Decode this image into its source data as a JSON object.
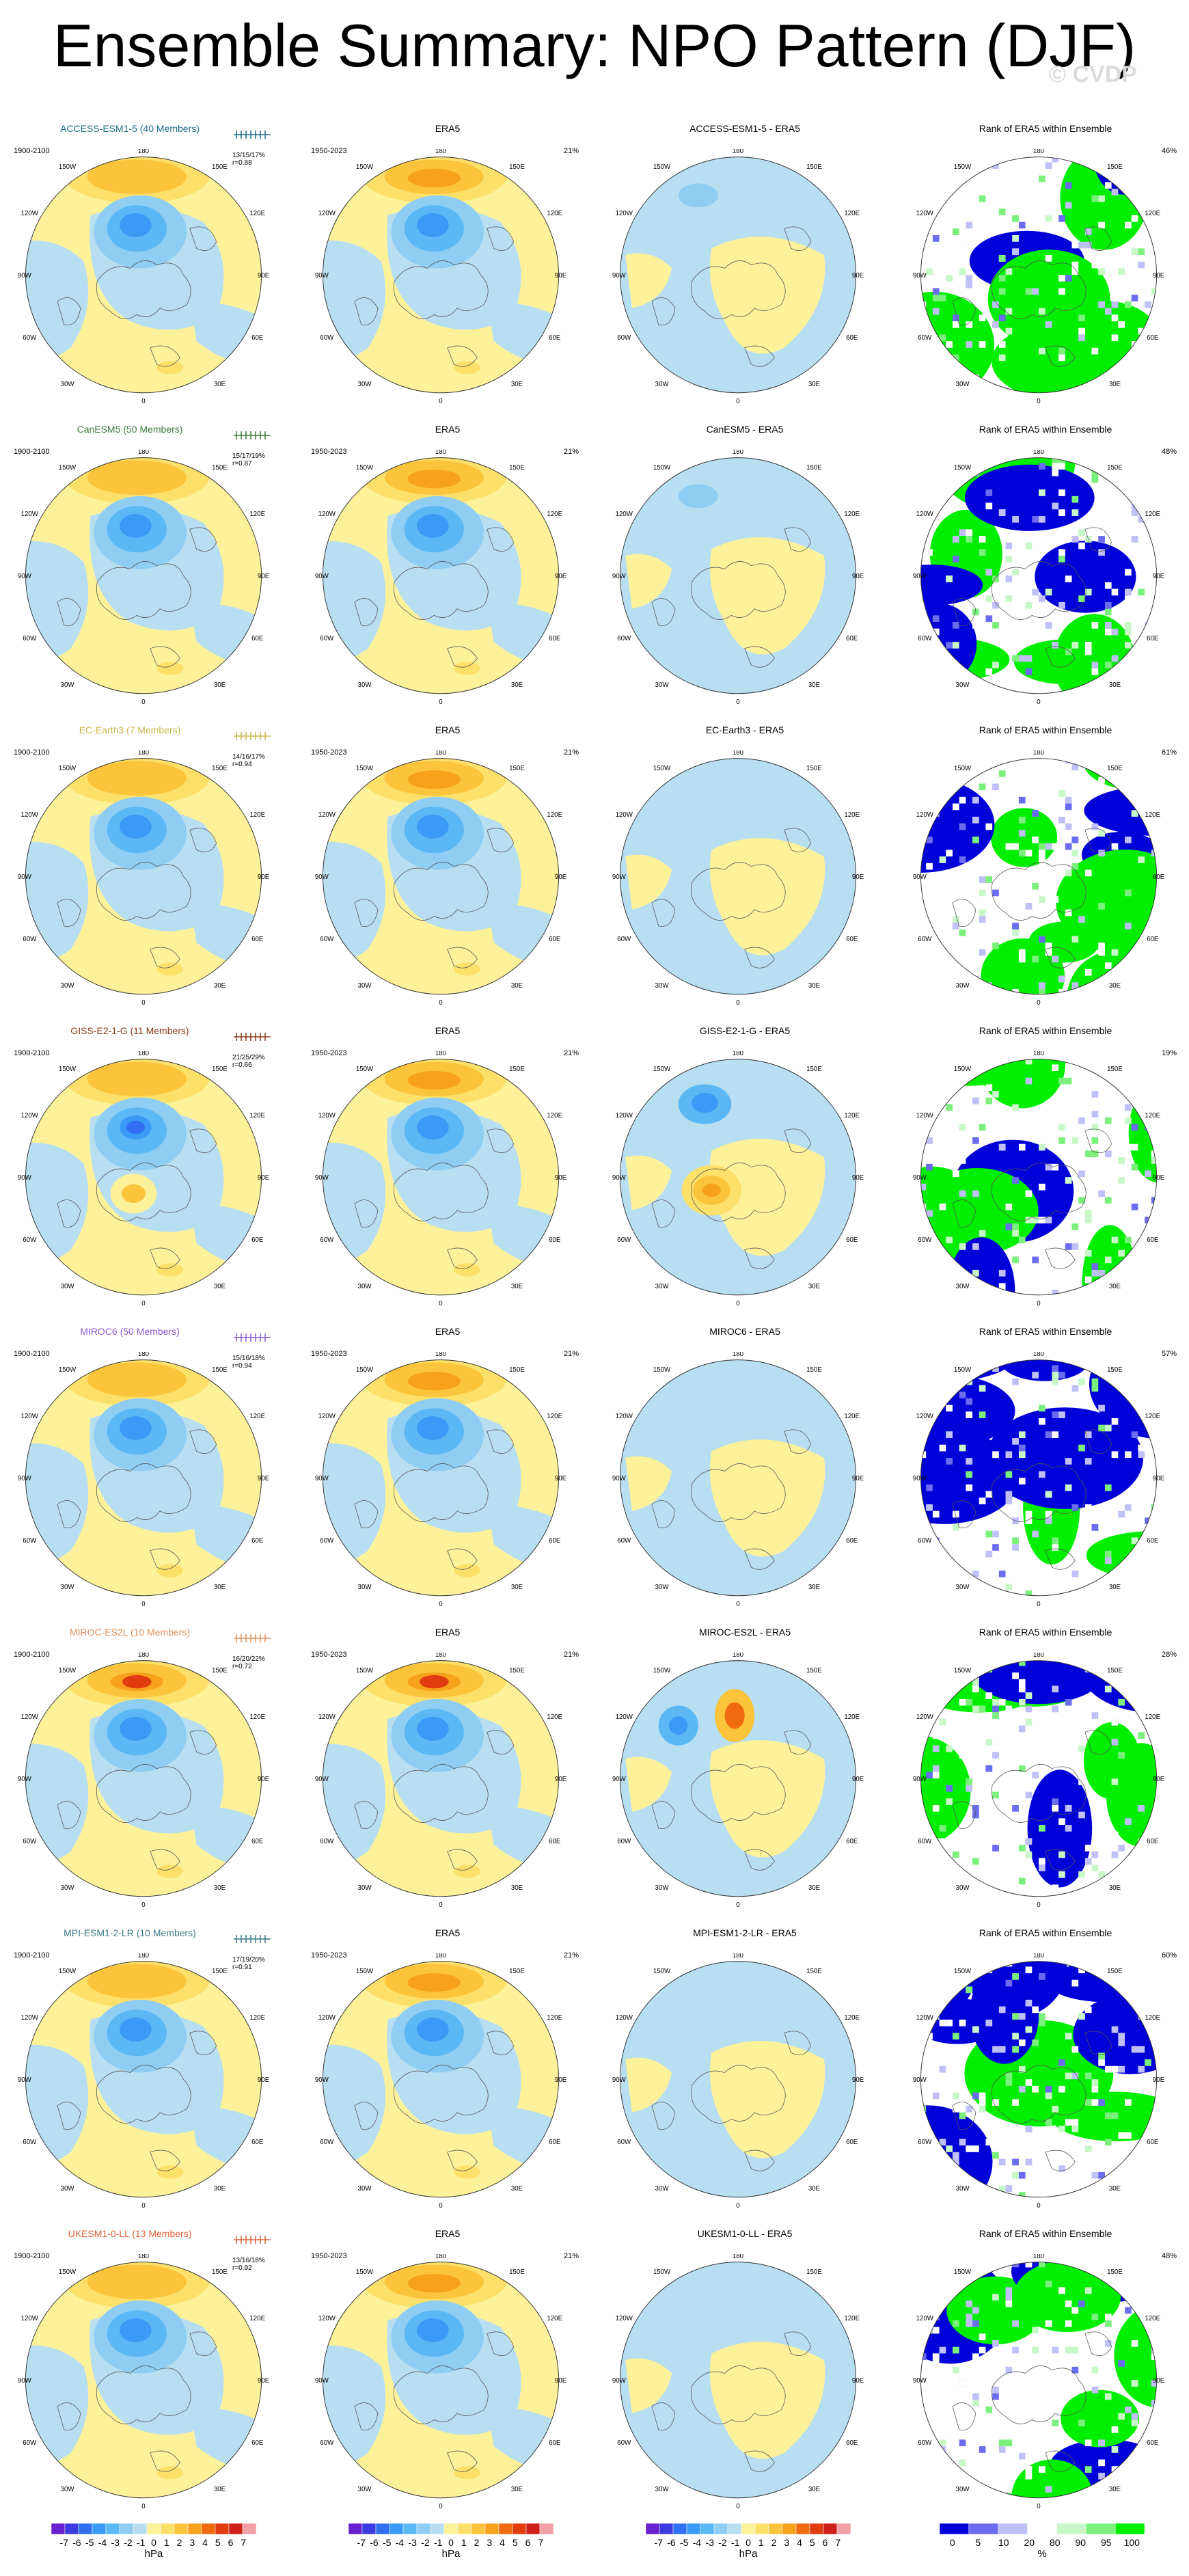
{
  "figure": {
    "title": "Ensemble Summary: NPO Pattern (DJF)",
    "watermark": "© CVDP"
  },
  "colors": {
    "neg7": "#6a1fd0",
    "neg6": "#3b3be0",
    "neg5": "#2f6ff0",
    "neg4": "#3a9af5",
    "neg3": "#5bb8f5",
    "neg2": "#8fcdf2",
    "neg1": "#b8def2",
    "pos1": "#fdf29a",
    "pos2": "#fde06a",
    "pos3": "#fbc43a",
    "pos4": "#f7a21c",
    "pos5": "#f06a10",
    "pos6": "#e03c10",
    "pos7": "#d0201a",
    "pos8": "#f2a0a8",
    "rank_blue": "#0000d8",
    "rank_lightblue": "#6c6cf0",
    "rank_paleblue": "#c0c0f8",
    "rank_white": "#ffffff",
    "rank_palegreen": "#c8f8c8",
    "rank_lightgreen": "#7cf07c",
    "rank_green": "#00ee00"
  },
  "map_labels": {
    "top": "180",
    "bottom": "0",
    "ul": "150W",
    "ur": "150E",
    "l1": "120W",
    "r1": "120E",
    "l2": "90W",
    "r2": "90E",
    "l3": "60W",
    "r3": "60E",
    "ll": "30W",
    "lr": "30E"
  },
  "rows": [
    {
      "model_title": "ACCESS-ESM1-5 (40 Members)",
      "model_color": "#1a6e8a",
      "model_years": "1900-2100",
      "stats1": "13/15/17%",
      "stats2": "r=0.88",
      "era5_title": "ERA5",
      "era5_years": "1950-2023",
      "era5_pct": "21%",
      "diff_title": "ACCESS-ESM1-5 - ERA5",
      "rank_title": "Rank of ERA5 within Ensemble",
      "rank_pct": "46%"
    },
    {
      "model_title": "CanESM5 (50 Members)",
      "model_color": "#3a7a3a",
      "model_years": "1900-2100",
      "stats1": "15/17/19%",
      "stats2": "r=0.87",
      "era5_title": "ERA5",
      "era5_years": "1950-2023",
      "era5_pct": "21%",
      "diff_title": "CanESM5 - ERA5",
      "rank_title": "Rank of ERA5 within Ensemble",
      "rank_pct": "48%"
    },
    {
      "model_title": "EC-Earth3 (7 Members)",
      "model_color": "#c8b84a",
      "model_years": "1900-2100",
      "stats1": "14/16/17%",
      "stats2": "r=0.94",
      "era5_title": "ERA5",
      "era5_years": "1950-2023",
      "era5_pct": "21%",
      "diff_title": "EC-Earth3 - ERA5",
      "rank_title": "Rank of ERA5 within Ensemble",
      "rank_pct": "61%"
    },
    {
      "model_title": "GISS-E2-1-G (11 Members)",
      "model_color": "#8a3a1a",
      "model_years": "1900-2100",
      "stats1": "21/25/29%",
      "stats2": "r=0.66",
      "era5_title": "ERA5",
      "era5_years": "1950-2023",
      "era5_pct": "21%",
      "diff_title": "GISS-E2-1-G - ERA5",
      "rank_title": "Rank of ERA5 within Ensemble",
      "rank_pct": "19%"
    },
    {
      "model_title": "MIROC6 (50 Members)",
      "model_color": "#8a5ad0",
      "model_years": "1900-2100",
      "stats1": "15/16/18%",
      "stats2": "r=0.94",
      "era5_title": "ERA5",
      "era5_years": "1950-2023",
      "era5_pct": "21%",
      "diff_title": "MIROC6 - ERA5",
      "rank_title": "Rank of ERA5 within Ensemble",
      "rank_pct": "57%"
    },
    {
      "model_title": "MIROC-ES2L (10 Members)",
      "model_color": "#e0905a",
      "model_years": "1900-2100",
      "stats1": "16/20/22%",
      "stats2": "r=0.72",
      "era5_title": "ERA5",
      "era5_years": "1950-2023",
      "era5_pct": "21%",
      "diff_title": "MIROC-ES2L - ERA5",
      "rank_title": "Rank of ERA5 within Ensemble",
      "rank_pct": "28%"
    },
    {
      "model_title": "MPI-ESM1-2-LR (10 Members)",
      "model_color": "#3a7a8a",
      "model_years": "1900-2100",
      "stats1": "17/19/20%",
      "stats2": "r=0.91",
      "era5_title": "ERA5",
      "era5_years": "1950-2023",
      "era5_pct": "21%",
      "diff_title": "MPI-ESM1-2-LR - ERA5",
      "rank_title": "Rank of ERA5 within Ensemble",
      "rank_pct": "60%"
    },
    {
      "model_title": "UKESM1-0-LL (13 Members)",
      "model_color": "#e0603a",
      "model_years": "1900-2100",
      "stats1": "13/16/18%",
      "stats2": "r=0.92",
      "era5_title": "ERA5",
      "era5_years": "1950-2023",
      "era5_pct": "21%",
      "diff_title": "UKESM1-0-LL - ERA5",
      "rank_title": "Rank of ERA5 within Ensemble",
      "rank_pct": "48%"
    }
  ],
  "colorbars": [
    {
      "labels": [
        "-7",
        "-6",
        "-5",
        "-4",
        "-3",
        "-2",
        "-1",
        "0",
        "1",
        "2",
        "3",
        "4",
        "5",
        "6",
        "7"
      ],
      "unit": "hPa"
    },
    {
      "labels": [
        "-7",
        "-6",
        "-5",
        "-4",
        "-3",
        "-2",
        "-1",
        "0",
        "1",
        "2",
        "3",
        "4",
        "5",
        "6",
        "7"
      ],
      "unit": "hPa"
    },
    {
      "labels": [
        "-7",
        "-6",
        "-5",
        "-4",
        "-3",
        "-2",
        "-1",
        "0",
        "1",
        "2",
        "3",
        "4",
        "5",
        "6",
        "7"
      ],
      "unit": "hPa"
    },
    {
      "labels": [
        "0",
        "5",
        "10",
        "20",
        "80",
        "90",
        "95",
        "100"
      ],
      "unit": "%"
    }
  ]
}
